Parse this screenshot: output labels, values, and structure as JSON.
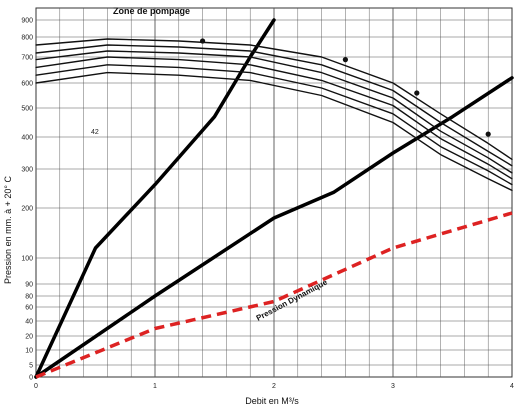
{
  "chart_data": {
    "type": "line",
    "xlabel": "Debit en M³/s",
    "ylabel": "Pression en mm. à + 20° C",
    "xlim": [
      0,
      4
    ],
    "ylim": [
      0,
      900
    ],
    "y_scale": "nonuniform",
    "x_ticks": [
      "0",
      "1",
      "2",
      "3",
      "4"
    ],
    "y_ticks": [
      {
        "value": 0,
        "label": "0"
      },
      {
        "value": 5,
        "label": "5"
      },
      {
        "value": 10,
        "label": "10"
      },
      {
        "value": 20,
        "label": "20"
      },
      {
        "value": 40,
        "label": "40"
      },
      {
        "value": 60,
        "label": "60"
      },
      {
        "value": 80,
        "label": "80"
      },
      {
        "value": 90,
        "label": "90"
      },
      {
        "value": 100,
        "label": "100"
      },
      {
        "value": 200,
        "label": "200"
      },
      {
        "value": 300,
        "label": "300"
      },
      {
        "value": 400,
        "label": "400"
      },
      {
        "value": 500,
        "label": "500"
      },
      {
        "value": 600,
        "label": "600"
      },
      {
        "value": 700,
        "label": "700"
      },
      {
        "value": 800,
        "label": "800"
      },
      {
        "value": 900,
        "label": "900"
      }
    ],
    "grid": true,
    "annotations": {
      "zone_pompage": "Zone de pompage",
      "pression_dynamique": "Pression Dynamique",
      "stray_mark": "42"
    },
    "series": [
      {
        "style": "solid",
        "color": "#000000",
        "points": [
          [
            0,
            0
          ],
          [
            0.5,
            120
          ],
          [
            1,
            260
          ],
          [
            1.5,
            470
          ],
          [
            1.8,
            700
          ],
          [
            2.0,
            900
          ]
        ]
      },
      {
        "style": "solid",
        "color": "#000000",
        "points": [
          [
            0,
            0
          ],
          [
            1,
            80
          ],
          [
            2,
            180
          ],
          [
            2.5,
            240
          ],
          [
            3,
            350
          ],
          [
            3.5,
            470
          ],
          [
            4,
            620
          ]
        ]
      },
      {
        "style": "dashed",
        "color": "#dd2222",
        "points": [
          [
            0,
            0
          ],
          [
            1,
            30
          ],
          [
            2,
            70
          ],
          [
            3,
            120
          ],
          [
            4,
            190
          ]
        ]
      },
      {
        "style": "fan",
        "points": [
          [
            0,
            760
          ],
          [
            0.6,
            790
          ],
          [
            1.2,
            780
          ],
          [
            1.8,
            760
          ],
          [
            2.4,
            700
          ],
          [
            3.0,
            600
          ],
          [
            3.4,
            480
          ],
          [
            3.8,
            380
          ],
          [
            4.0,
            330
          ]
        ]
      },
      {
        "style": "fan",
        "points": [
          [
            0,
            720
          ],
          [
            0.6,
            760
          ],
          [
            1.2,
            750
          ],
          [
            1.8,
            730
          ],
          [
            2.4,
            670
          ],
          [
            3.0,
            570
          ],
          [
            3.4,
            450
          ],
          [
            3.8,
            355
          ],
          [
            4.0,
            310
          ]
        ]
      },
      {
        "style": "fan",
        "points": [
          [
            0,
            690
          ],
          [
            0.6,
            730
          ],
          [
            1.2,
            720
          ],
          [
            1.8,
            700
          ],
          [
            2.4,
            640
          ],
          [
            3.0,
            540
          ],
          [
            3.4,
            420
          ],
          [
            3.8,
            335
          ],
          [
            4.0,
            290
          ]
        ]
      },
      {
        "style": "fan",
        "points": [
          [
            0,
            660
          ],
          [
            0.6,
            700
          ],
          [
            1.2,
            690
          ],
          [
            1.8,
            670
          ],
          [
            2.4,
            610
          ],
          [
            3.0,
            510
          ],
          [
            3.4,
            395
          ],
          [
            3.8,
            315
          ],
          [
            4.0,
            275
          ]
        ]
      },
      {
        "style": "fan",
        "points": [
          [
            0,
            630
          ],
          [
            0.6,
            670
          ],
          [
            1.2,
            660
          ],
          [
            1.8,
            640
          ],
          [
            2.4,
            580
          ],
          [
            3.0,
            480
          ],
          [
            3.4,
            370
          ],
          [
            3.8,
            295
          ],
          [
            4.0,
            260
          ]
        ]
      },
      {
        "style": "fan",
        "points": [
          [
            0,
            600
          ],
          [
            0.6,
            640
          ],
          [
            1.2,
            630
          ],
          [
            1.8,
            610
          ],
          [
            2.4,
            550
          ],
          [
            3.0,
            450
          ],
          [
            3.4,
            345
          ],
          [
            3.8,
            275
          ],
          [
            4.0,
            245
          ]
        ]
      }
    ],
    "markers": [
      [
        1.4,
        780
      ],
      [
        2.6,
        690
      ],
      [
        3.2,
        560
      ],
      [
        3.8,
        410
      ]
    ]
  }
}
